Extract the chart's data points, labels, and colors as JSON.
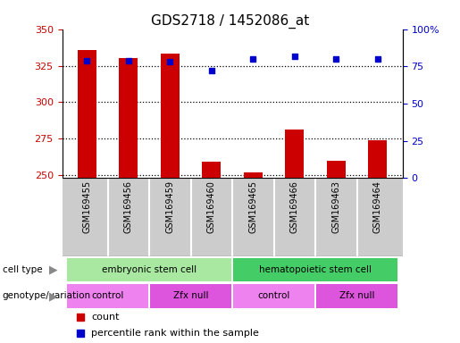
{
  "title": "GDS2718 / 1452086_at",
  "samples": [
    "GSM169455",
    "GSM169456",
    "GSM169459",
    "GSM169460",
    "GSM169465",
    "GSM169466",
    "GSM169463",
    "GSM169464"
  ],
  "counts": [
    336,
    330,
    333,
    259,
    252,
    281,
    260,
    274
  ],
  "percentile_ranks": [
    79,
    79,
    78,
    72,
    80,
    82,
    80,
    80
  ],
  "ylim_left": [
    248,
    350
  ],
  "ylim_right": [
    0,
    100
  ],
  "yticks_left": [
    250,
    275,
    300,
    325,
    350
  ],
  "yticks_right": [
    0,
    25,
    50,
    75,
    100
  ],
  "ytick_labels_right": [
    "0",
    "25",
    "50",
    "75",
    "100%"
  ],
  "bar_color": "#cc0000",
  "dot_color": "#0000cc",
  "bar_bottom": 248,
  "cell_types": [
    {
      "label": "embryonic stem cell",
      "start": 0,
      "end": 4,
      "color": "#a8e8a0"
    },
    {
      "label": "hematopoietic stem cell",
      "start": 4,
      "end": 8,
      "color": "#44cc66"
    }
  ],
  "genotype_groups": [
    {
      "label": "control",
      "start": 0,
      "end": 2,
      "color": "#ee82ee"
    },
    {
      "label": "Zfx null",
      "start": 2,
      "end": 4,
      "color": "#dd55dd"
    },
    {
      "label": "control",
      "start": 4,
      "end": 6,
      "color": "#ee82ee"
    },
    {
      "label": "Zfx null",
      "start": 6,
      "end": 8,
      "color": "#dd55dd"
    }
  ],
  "axis_color_left": "#cc0000",
  "axis_color_right": "#0000cc",
  "cell_type_row_label": "cell type",
  "genotype_row_label": "genotype/variation",
  "legend_count_label": "count",
  "legend_pct_label": "percentile rank within the sample",
  "legend_count_color": "#cc0000",
  "legend_pct_color": "#0000cc",
  "sample_bg_color": "#cccccc",
  "sample_divider_color": "#ffffff"
}
